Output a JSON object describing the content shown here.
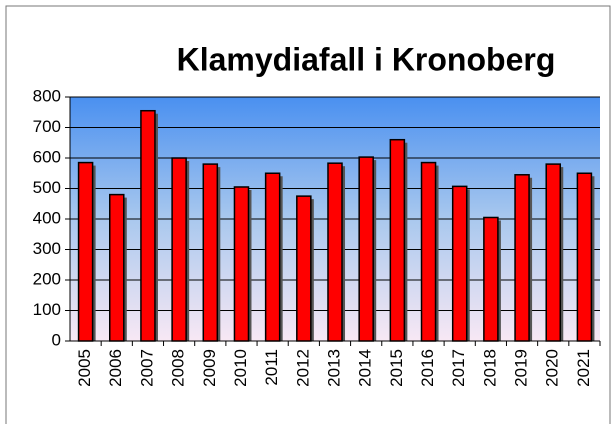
{
  "chart_data": {
    "type": "bar",
    "title": "Klamydiafall i Kronoberg",
    "categories": [
      "2005",
      "2006",
      "2007",
      "2008",
      "2009",
      "2010",
      "2011",
      "2012",
      "2013",
      "2014",
      "2015",
      "2016",
      "2017",
      "2018",
      "2019",
      "2020",
      "2021"
    ],
    "values": [
      585,
      480,
      755,
      600,
      580,
      505,
      550,
      475,
      583,
      603,
      660,
      585,
      507,
      405,
      545,
      580,
      550
    ],
    "color": "#ff0000",
    "ylim": [
      0,
      800
    ],
    "yticks": [
      0,
      100,
      200,
      300,
      400,
      500,
      600,
      700,
      800
    ],
    "grid": true
  }
}
